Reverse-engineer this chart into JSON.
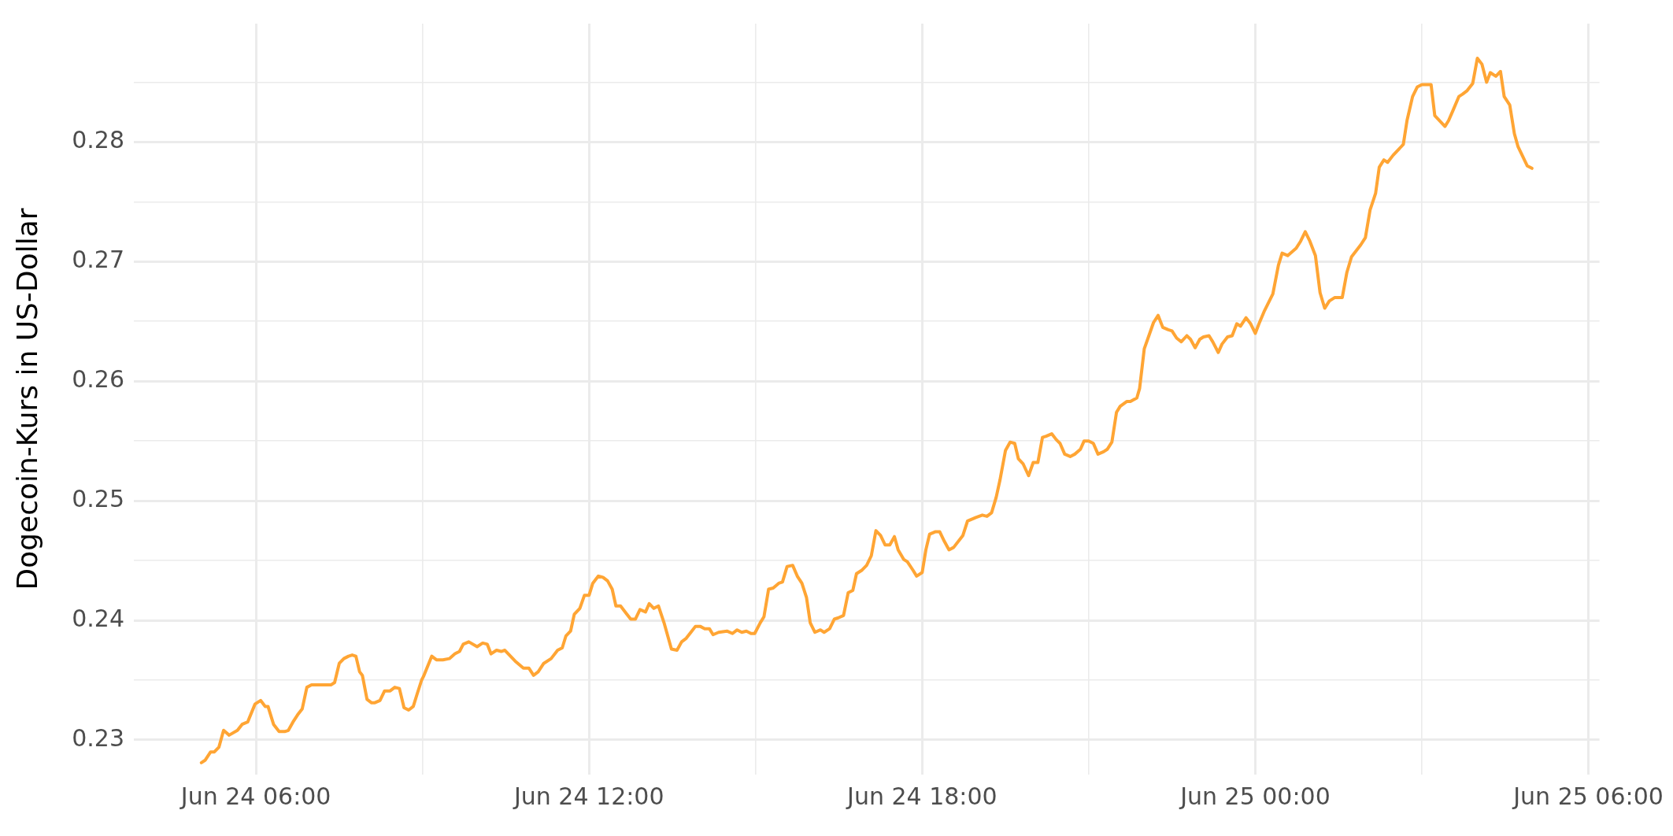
{
  "chart_data": {
    "type": "line",
    "ylabel": "Dogecoin-Kurs in US-Dollar",
    "color": "#ffa534",
    "marker": "none",
    "line_style": "solid",
    "grid": true,
    "xlim": [
      "--06-24T03:48",
      "--06-25T06:12"
    ],
    "xticks": [
      {
        "value": "--06-24T06:00",
        "label": "Jun 24 06:00"
      },
      {
        "value": "--06-24T09:00",
        "label": null
      },
      {
        "value": "--06-24T12:00",
        "label": "Jun 24 12:00"
      },
      {
        "value": "--06-24T15:00",
        "label": null
      },
      {
        "value": "--06-24T18:00",
        "label": "Jun 24 18:00"
      },
      {
        "value": "--06-24T21:00",
        "label": null
      },
      {
        "value": "--06-25T00:00",
        "label": "Jun 25 00:00"
      },
      {
        "value": "--06-25T03:00",
        "label": null
      },
      {
        "value": "--06-25T06:00",
        "label": "Jun 25 06:00"
      }
    ],
    "ylim": [
      0.2271,
      0.2899
    ],
    "yticks": [
      0.23,
      {
        "value": 0.235,
        "label": null
      },
      0.24,
      {
        "value": 0.245,
        "label": null
      },
      0.25,
      {
        "value": 0.255,
        "label": null
      },
      0.26,
      {
        "value": 0.265,
        "label": null
      },
      0.27,
      {
        "value": 0.275,
        "label": null
      },
      0.28,
      {
        "value": 0.285,
        "label": null
      }
    ],
    "x": [
      "--06-24T05:01",
      "--06-24T05:05",
      "--06-24T05:11",
      "--06-24T05:15",
      "--06-24T05:20",
      "--06-24T05:25",
      "--06-24T05:31",
      "--06-24T05:40",
      "--06-24T05:45",
      "--06-24T05:51",
      "--06-24T05:59",
      "--06-24T06:05",
      "--06-24T06:10",
      "--06-24T06:13",
      "--06-24T06:19",
      "--06-24T06:25",
      "--06-24T06:31",
      "--06-24T06:35",
      "--06-24T06:40",
      "--06-24T06:45",
      "--06-24T06:50",
      "--06-24T06:55",
      "--06-24T07:00",
      "--06-24T07:09",
      "--06-24T07:16",
      "--06-24T07:21",
      "--06-24T07:25",
      "--06-24T07:30",
      "--06-24T07:35",
      "--06-24T07:40",
      "--06-24T07:44",
      "--06-24T07:48",
      "--06-24T07:52",
      "--06-24T07:55",
      "--06-24T08:00",
      "--06-24T08:05",
      "--06-24T08:08",
      "--06-24T08:14",
      "--06-24T08:19",
      "--06-24T08:25",
      "--06-24T08:30",
      "--06-24T08:35",
      "--06-24T08:40",
      "--06-24T08:45",
      "--06-24T08:50",
      "--06-24T08:54",
      "--06-24T08:59",
      "--06-24T09:01",
      "--06-24T09:10",
      "--06-24T09:15",
      "--06-24T09:22",
      "--06-24T09:29",
      "--06-24T09:35",
      "--06-24T09:40",
      "--06-24T09:44",
      "--06-24T09:50",
      "--06-24T09:59",
      "--06-24T10:05",
      "--06-24T10:10",
      "--06-24T10:14",
      "--06-24T10:20",
      "--06-24T10:25",
      "--06-24T10:29",
      "--06-24T10:40",
      "--06-24T10:49",
      "--06-24T10:55",
      "--06-24T11:00",
      "--06-24T11:05",
      "--06-24T11:11",
      "--06-24T11:19",
      "--06-24T11:26",
      "--06-24T11:31",
      "--06-24T11:35",
      "--06-24T11:40",
      "--06-24T11:44",
      "--06-24T11:50",
      "--06-24T11:55",
      "--06-24T12:00",
      "--06-24T12:04",
      "--06-24T12:10",
      "--06-24T12:15",
      "--06-24T12:20",
      "--06-24T12:25",
      "--06-24T12:29",
      "--06-24T12:34",
      "--06-24T12:40",
      "--06-24T12:45",
      "--06-24T12:50",
      "--06-24T12:55",
      "--06-24T13:01",
      "--06-24T13:05",
      "--06-24T13:10",
      "--06-24T13:15",
      "--06-24T13:21",
      "--06-24T13:25",
      "--06-24T13:29",
      "--06-24T13:35",
      "--06-24T13:40",
      "--06-24T13:45",
      "--06-24T13:50",
      "--06-24T13:55",
      "--06-24T14:00",
      "--06-24T14:05",
      "--06-24T14:10",
      "--06-24T14:14",
      "--06-24T14:20",
      "--06-24T14:29",
      "--06-24T14:35",
      "--06-24T14:40",
      "--06-24T14:45",
      "--06-24T14:50",
      "--06-24T14:55",
      "--06-24T14:59",
      "--06-24T15:05",
      "--06-24T15:09",
      "--06-24T15:14",
      "--06-24T15:19",
      "--06-24T15:25",
      "--06-24T15:29",
      "--06-24T15:34",
      "--06-24T15:40",
      "--06-24T15:45",
      "--06-24T15:50",
      "--06-24T15:55",
      "--06-24T15:59",
      "--06-24T16:04",
      "--06-24T16:10",
      "--06-24T16:14",
      "--06-24T16:20",
      "--06-24T16:25",
      "--06-24T16:29",
      "--06-24T16:35",
      "--06-24T16:40",
      "--06-24T16:45",
      "--06-24T16:49",
      "--06-24T16:55",
      "--06-24T17:00",
      "--06-24T17:05",
      "--06-24T17:10",
      "--06-24T17:15",
      "--06-24T17:20",
      "--06-24T17:25",
      "--06-24T17:30",
      "--06-24T17:34",
      "--06-24T17:40",
      "--06-24T17:44",
      "--06-24T17:50",
      "--06-24T17:54",
      "--06-24T18:00",
      "--06-24T18:04",
      "--06-24T18:08",
      "--06-24T18:14",
      "--06-24T18:19",
      "--06-24T18:24",
      "--06-24T18:29",
      "--06-24T18:34",
      "--06-24T18:44",
      "--06-24T18:49",
      "--06-24T18:58",
      "--06-24T19:05",
      "--06-24T19:10",
      "--06-24T19:15",
      "--06-24T19:20",
      "--06-24T19:24",
      "--06-24T19:30",
      "--06-24T19:35",
      "--06-24T19:40",
      "--06-24T19:44",
      "--06-24T19:49",
      "--06-24T19:55",
      "--06-24T20:00",
      "--06-24T20:05",
      "--06-24T20:10",
      "--06-24T20:14",
      "--06-24T20:20",
      "--06-24T20:25",
      "--06-24T20:29",
      "--06-24T20:34",
      "--06-24T20:40",
      "--06-24T20:45",
      "--06-24T20:51",
      "--06-24T20:55",
      "--06-24T21:00",
      "--06-24T21:05",
      "--06-24T21:10",
      "--06-24T21:16",
      "--06-24T21:20",
      "--06-24T21:25",
      "--06-24T21:30",
      "--06-24T21:34",
      "--06-24T21:41",
      "--06-24T21:45",
      "--06-24T21:52",
      "--06-24T21:55",
      "--06-24T22:00",
      "--06-24T22:05",
      "--06-24T22:10",
      "--06-24T22:15",
      "--06-24T22:20",
      "--06-24T22:26",
      "--06-24T22:30",
      "--06-24T22:35",
      "--06-24T22:40",
      "--06-24T22:46",
      "--06-24T22:50",
      "--06-24T22:55",
      "--06-24T23:00",
      "--06-24T23:04",
      "--06-24T23:10",
      "--06-24T23:14",
      "--06-24T23:20",
      "--06-24T23:24",
      "--06-24T23:30",
      "--06-24T23:35",
      "--06-24T23:40",
      "--06-24T23:44",
      "--06-24T23:50",
      "--06-24T23:55",
      "--06-25T00:00",
      "--06-25T00:04",
      "--06-25T00:10",
      "--06-25T00:19",
      "--06-25T00:25",
      "--06-25T00:29",
      "--06-25T00:35",
      "--06-25T00:44",
      "--06-25T00:49",
      "--06-25T00:54",
      "--06-25T00:59",
      "--06-25T01:05",
      "--06-25T01:10",
      "--06-25T01:15",
      "--06-25T01:20",
      "--06-25T01:26",
      "--06-25T01:34",
      "--06-25T01:39",
      "--06-25T01:44",
      "--06-25T01:54",
      "--06-25T01:59",
      "--06-25T02:04",
      "--06-25T02:10",
      "--06-25T02:14",
      "--06-25T02:19",
      "--06-25T02:23",
      "--06-25T02:29",
      "--06-25T02:40",
      "--06-25T02:44",
      "--06-25T02:50",
      "--06-25T02:55",
      "--06-25T03:00",
      "--06-25T03:10",
      "--06-25T03:14",
      "--06-25T03:19",
      "--06-25T03:25",
      "--06-25T03:29",
      "--06-25T03:34",
      "--06-25T03:40",
      "--06-25T03:44",
      "--06-25T03:49",
      "--06-25T03:55",
      "--06-25T04:00",
      "--06-25T04:05",
      "--06-25T04:10",
      "--06-25T04:14",
      "--06-25T04:20",
      "--06-25T04:25",
      "--06-25T04:29",
      "--06-25T04:35",
      "--06-25T04:40",
      "--06-25T04:44",
      "--06-25T04:54",
      "--06-25T04:59"
    ],
    "values": [
      0.2281,
      0.2283,
      0.229,
      0.229,
      0.2294,
      0.2308,
      0.2304,
      0.2308,
      0.2313,
      0.2315,
      0.233,
      0.2333,
      0.2328,
      0.2328,
      0.2313,
      0.2307,
      0.2307,
      0.2308,
      0.2315,
      0.2321,
      0.2326,
      0.2344,
      0.2346,
      0.2346,
      0.2346,
      0.2346,
      0.2348,
      0.2364,
      0.2368,
      0.237,
      0.2371,
      0.237,
      0.2357,
      0.2354,
      0.2334,
      0.2331,
      0.2331,
      0.2333,
      0.2341,
      0.2341,
      0.2344,
      0.2343,
      0.2327,
      0.2325,
      0.2328,
      0.2338,
      0.235,
      0.2353,
      0.237,
      0.2367,
      0.2367,
      0.2368,
      0.2372,
      0.2374,
      0.238,
      0.2382,
      0.2378,
      0.2381,
      0.238,
      0.2372,
      0.2375,
      0.2374,
      0.2375,
      0.2366,
      0.236,
      0.236,
      0.2354,
      0.2357,
      0.2364,
      0.2368,
      0.2375,
      0.2377,
      0.2387,
      0.2391,
      0.2405,
      0.241,
      0.2421,
      0.2421,
      0.2431,
      0.2437,
      0.2436,
      0.2433,
      0.2426,
      0.2412,
      0.2412,
      0.2406,
      0.2401,
      0.2401,
      0.2409,
      0.2407,
      0.2414,
      0.241,
      0.2412,
      0.2398,
      0.2387,
      0.2376,
      0.2375,
      0.2382,
      0.2385,
      0.239,
      0.2395,
      0.2395,
      0.2393,
      0.2393,
      0.2388,
      0.239,
      0.2391,
      0.2389,
      0.2392,
      0.239,
      0.2391,
      0.2389,
      0.2389,
      0.2398,
      0.2403,
      0.2426,
      0.2427,
      0.2431,
      0.2432,
      0.2445,
      0.2446,
      0.2437,
      0.2431,
      0.2419,
      0.2398,
      0.239,
      0.2392,
      0.239,
      0.2393,
      0.2401,
      0.2402,
      0.2404,
      0.2423,
      0.2425,
      0.2439,
      0.2442,
      0.2446,
      0.2454,
      0.2475,
      0.2471,
      0.2463,
      0.2463,
      0.247,
      0.2459,
      0.2451,
      0.2449,
      0.2442,
      0.2437,
      0.244,
      0.2459,
      0.2472,
      0.2474,
      0.2474,
      0.2466,
      0.2459,
      0.2461,
      0.2471,
      0.2483,
      0.2486,
      0.2488,
      0.2487,
      0.249,
      0.2503,
      0.2517,
      0.2542,
      0.2549,
      0.2548,
      0.2535,
      0.2531,
      0.2521,
      0.2532,
      0.2532,
      0.2553,
      0.2554,
      0.2556,
      0.2551,
      0.2548,
      0.2539,
      0.2537,
      0.2539,
      0.2543,
      0.255,
      0.255,
      0.2548,
      0.2539,
      0.2541,
      0.2543,
      0.2549,
      0.2574,
      0.2579,
      0.2583,
      0.2583,
      0.2586,
      0.2594,
      0.2627,
      0.2638,
      0.2649,
      0.2655,
      0.2645,
      0.2643,
      0.2642,
      0.2636,
      0.2633,
      0.2638,
      0.2635,
      0.2628,
      0.2635,
      0.2637,
      0.2638,
      0.2633,
      0.2624,
      0.2631,
      0.2637,
      0.2638,
      0.2648,
      0.2646,
      0.2653,
      0.2648,
      0.264,
      0.2648,
      0.2659,
      0.2673,
      0.2697,
      0.2707,
      0.2705,
      0.2711,
      0.2717,
      0.2725,
      0.2717,
      0.2705,
      0.2674,
      0.2661,
      0.2667,
      0.267,
      0.267,
      0.2691,
      0.2704,
      0.2714,
      0.272,
      0.2743,
      0.2757,
      0.2779,
      0.2785,
      0.2783,
      0.2789,
      0.2798,
      0.2818,
      0.2838,
      0.2846,
      0.2848,
      0.2848,
      0.2822,
      0.2818,
      0.2813,
      0.2818,
      0.2827,
      0.2838,
      0.284,
      0.2843,
      0.2849,
      0.287,
      0.2865,
      0.285,
      0.2858,
      0.2855,
      0.2859,
      0.2838,
      0.2831,
      0.2807,
      0.2796,
      0.278,
      0.2778
    ]
  }
}
